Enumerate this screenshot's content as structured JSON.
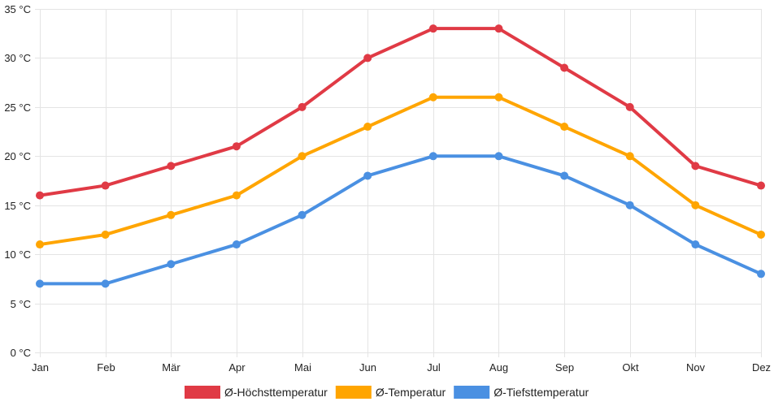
{
  "chart_data": {
    "type": "line",
    "title": "",
    "xlabel": "",
    "ylabel": "",
    "categories": [
      "Jan",
      "Feb",
      "Mär",
      "Apr",
      "Mai",
      "Jun",
      "Jul",
      "Aug",
      "Sep",
      "Okt",
      "Nov",
      "Dez"
    ],
    "ylim": [
      0,
      35
    ],
    "y_ticks": [
      0,
      5,
      10,
      15,
      20,
      25,
      30,
      35
    ],
    "y_tick_labels": [
      "0 °C",
      "5 °C",
      "10 °C",
      "15 °C",
      "20 °C",
      "25 °C",
      "30 °C",
      "35 °C"
    ],
    "grid": true,
    "legend_position": "bottom",
    "series": [
      {
        "name": "Ø-Höchsttemperatur",
        "color": "#e03a45",
        "values": [
          16,
          17,
          19,
          21,
          25,
          30,
          33,
          33,
          29,
          25,
          19,
          17
        ]
      },
      {
        "name": "Ø-Temperatur",
        "color": "#ffa500",
        "values": [
          11,
          12,
          14,
          16,
          20,
          23,
          26,
          26,
          23,
          20,
          15,
          12
        ]
      },
      {
        "name": "Ø-Tiefsttemperatur",
        "color": "#4a90e2",
        "values": [
          7,
          7,
          9,
          11,
          14,
          18,
          20,
          20,
          18,
          15,
          11,
          8
        ]
      }
    ]
  }
}
